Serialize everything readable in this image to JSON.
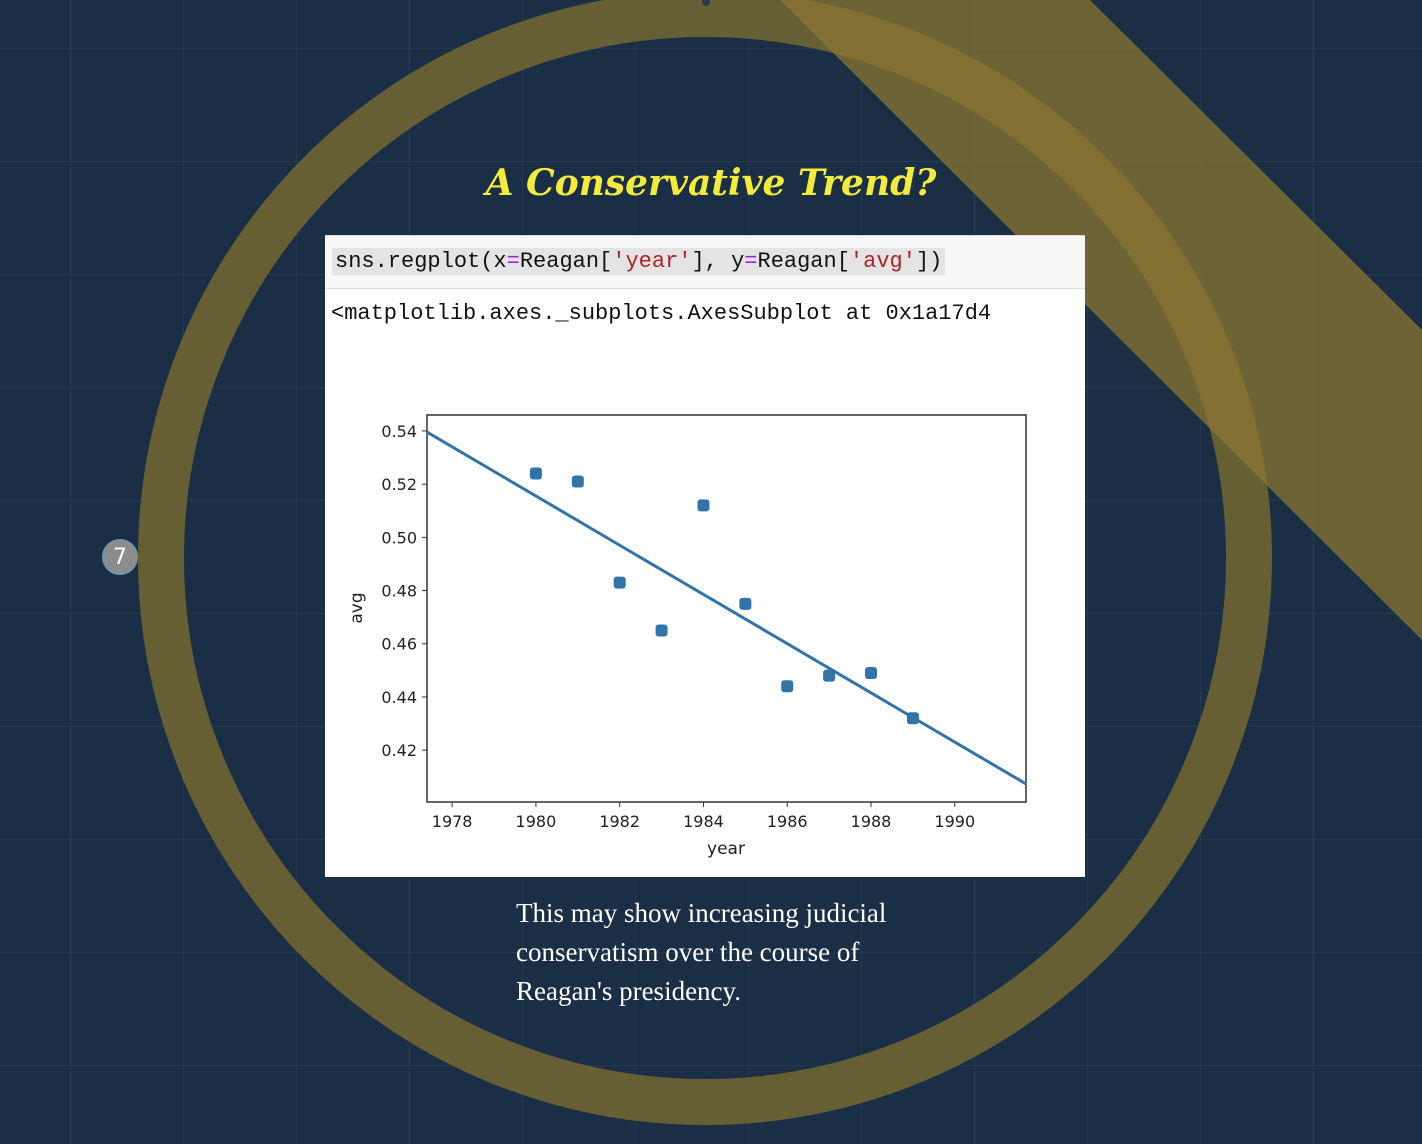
{
  "slide": {
    "number": "7",
    "title": "A Conservative Trend?",
    "caption": "This may show increasing judicial conservatism over the course of Reagan's presidency.",
    "colors": {
      "background": "#1a2f45",
      "ring": "#6b6234",
      "band": "#7a6a2e",
      "title": "#f4ec3a",
      "series": "#3274a8"
    }
  },
  "notebook": {
    "code_parts": [
      "sns.regplot(x",
      "=",
      "Reagan[",
      "'year'",
      "], y",
      "=",
      "Reagan[",
      "'avg'",
      "])"
    ],
    "output": "<matplotlib.axes._subplots.AxesSubplot at 0x1a17d4"
  },
  "chart_data": {
    "type": "scatter",
    "title": "",
    "xlabel": "year",
    "ylabel": "avg",
    "xlim": [
      1977.4,
      1991.7
    ],
    "ylim": [
      0.4005,
      0.546
    ],
    "xticks": [
      1978,
      1980,
      1982,
      1984,
      1986,
      1988,
      1990
    ],
    "yticks": [
      0.42,
      0.44,
      0.46,
      0.48,
      0.5,
      0.52,
      0.54
    ],
    "xtick_labels": [
      "1978",
      "1980",
      "1982",
      "1984",
      "1986",
      "1988",
      "1990"
    ],
    "ytick_labels": [
      "0.42",
      "0.44",
      "0.46",
      "0.48",
      "0.50",
      "0.52",
      "0.54"
    ],
    "grid": false,
    "points": [
      {
        "x": 1980,
        "y": 0.524
      },
      {
        "x": 1981,
        "y": 0.521
      },
      {
        "x": 1982,
        "y": 0.483
      },
      {
        "x": 1983,
        "y": 0.465
      },
      {
        "x": 1984,
        "y": 0.512
      },
      {
        "x": 1985,
        "y": 0.475
      },
      {
        "x": 1986,
        "y": 0.444
      },
      {
        "x": 1987,
        "y": 0.448
      },
      {
        "x": 1988,
        "y": 0.449
      },
      {
        "x": 1989,
        "y": 0.432
      }
    ],
    "regression_line": [
      {
        "x": 1977.4,
        "y": 0.5396
      },
      {
        "x": 1991.7,
        "y": 0.4073
      }
    ]
  }
}
